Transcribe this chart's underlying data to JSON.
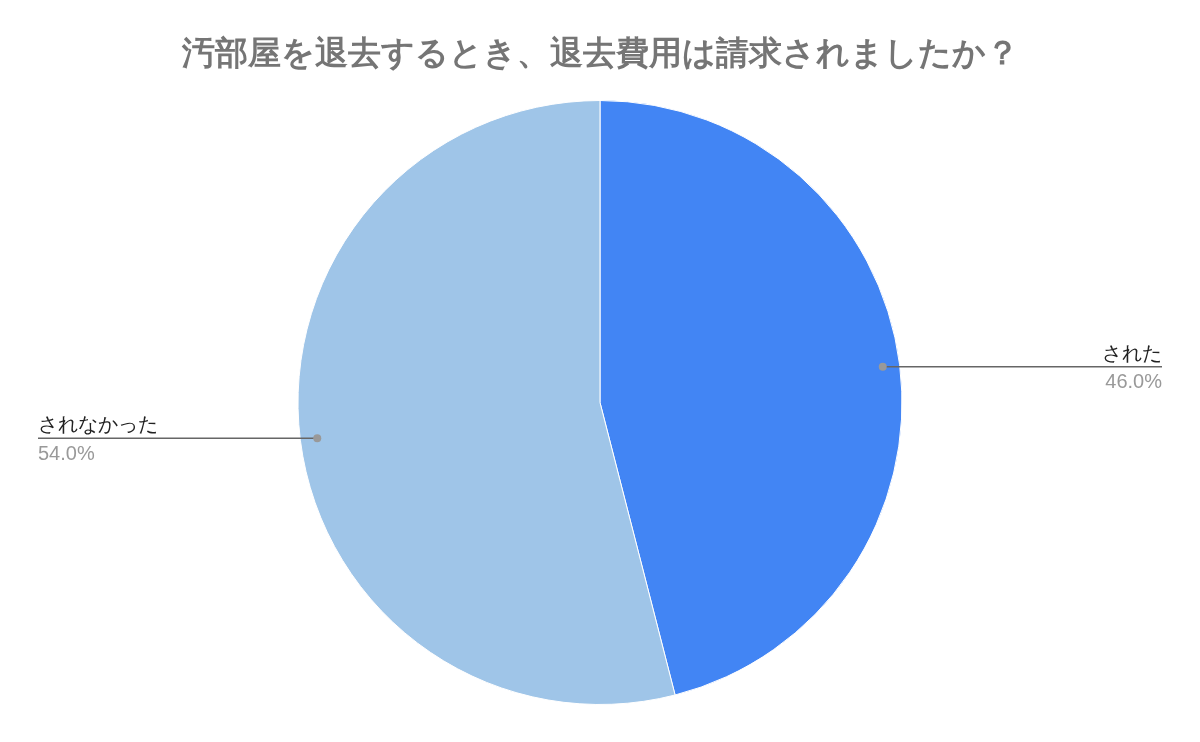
{
  "chart_data": {
    "type": "pie",
    "title": "汚部屋を退去するとき、退去費用は請求されましたか？",
    "categories": [
      "された",
      "されなかった"
    ],
    "values": [
      46.0,
      54.0
    ],
    "colors": [
      "#4285f4",
      "#9fc5e8"
    ],
    "value_labels": [
      "46.0%",
      "54.0%"
    ],
    "legend": false
  }
}
